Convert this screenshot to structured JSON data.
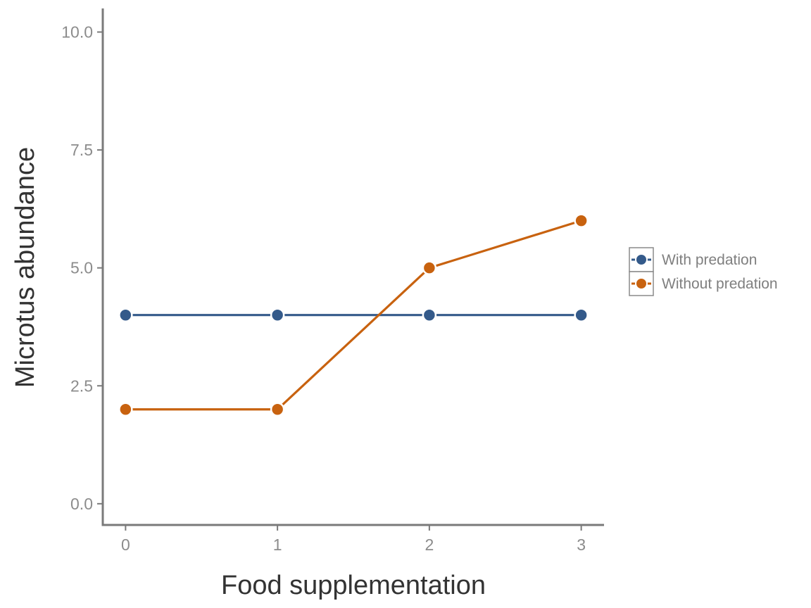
{
  "chart_data": {
    "type": "line",
    "title": "",
    "xlabel": "Food supplementation",
    "ylabel": "Microtus abundance",
    "x": [
      0,
      1,
      2,
      3
    ],
    "x_ticks": [
      "0",
      "1",
      "2",
      "3"
    ],
    "y_ticks": [
      "0.0",
      "2.5",
      "5.0",
      "7.5",
      "10.0"
    ],
    "y_tick_values": [
      0,
      2.5,
      5,
      7.5,
      10
    ],
    "xlim": [
      -0.15,
      3.15
    ],
    "ylim": [
      -0.45,
      10.5
    ],
    "grid": false,
    "legend_position": "right",
    "series": [
      {
        "name": "With predation",
        "color": "#345a8a",
        "values": [
          4,
          4,
          4,
          4
        ]
      },
      {
        "name": "Without predation",
        "color": "#c8620f",
        "values": [
          2,
          2,
          5,
          6
        ]
      }
    ]
  }
}
